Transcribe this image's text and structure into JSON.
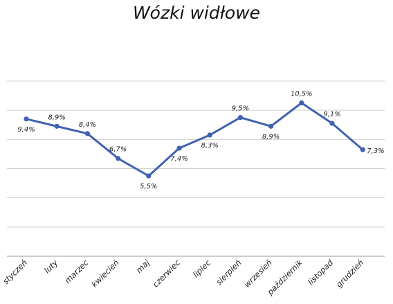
{
  "chart_data": {
    "type": "line",
    "title": "Wózki widłowe",
    "categories": [
      "styczeń",
      "luty",
      "marzec",
      "kwiecień",
      "maj",
      "czerwiec",
      "lipiec",
      "sierpień",
      "wrzesień",
      "październik",
      "listopad",
      "grudzień"
    ],
    "series": [
      {
        "values": [
          9.4,
          8.9,
          8.4,
          6.7,
          5.5,
          7.4,
          8.3,
          9.5,
          8.9,
          10.5,
          9.1,
          7.3
        ],
        "labels": [
          "9,4%",
          "8,9%",
          "8,4%",
          "6,7%",
          "5,5%",
          "7,4%",
          "8,3%",
          "9,5%",
          "8,9%",
          "10,5%",
          "9,1%",
          "7,3%"
        ],
        "color": "#3f62b0"
      }
    ],
    "ylim": [
      0,
      12
    ],
    "grid": true,
    "gridline_color": "#d0d0d0",
    "legend": "none"
  }
}
